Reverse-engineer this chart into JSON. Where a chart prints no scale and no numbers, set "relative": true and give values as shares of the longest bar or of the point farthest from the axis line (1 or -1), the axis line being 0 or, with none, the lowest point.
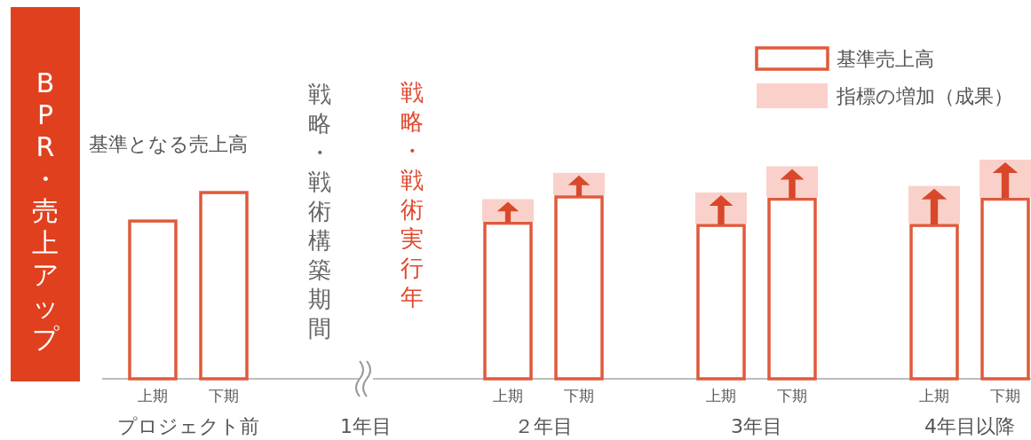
{
  "chart_data": {
    "type": "bar",
    "stacked": true,
    "relative": true,
    "legend": "top right",
    "ylabel": "BPR・売上アップ",
    "categories": [
      "上期",
      "下期",
      null,
      null,
      null,
      "上期",
      "下期",
      null,
      "上期",
      "下期",
      null,
      "上期",
      "下期"
    ],
    "series": [
      {
        "name": "基準売上高",
        "color": "#e05a3c",
        "values": [
          0.72,
          0.85,
          null,
          null,
          null,
          0.71,
          0.83,
          null,
          0.7,
          0.82,
          null,
          0.7,
          0.82
        ]
      },
      {
        "name": "指標の増加（成果）",
        "color": "#f9d1ca",
        "values": [
          null,
          null,
          null,
          null,
          null,
          0.11,
          0.11,
          null,
          0.15,
          0.15,
          null,
          0.18,
          0.18
        ]
      }
    ],
    "annotations": [
      "基準となる売上高",
      "戦略・戦術構築期間",
      "戦略・戦術実行年",
      "プロジェクト前",
      "1年目",
      "２年目",
      "3年目",
      "4年目以降"
    ]
  }
}
